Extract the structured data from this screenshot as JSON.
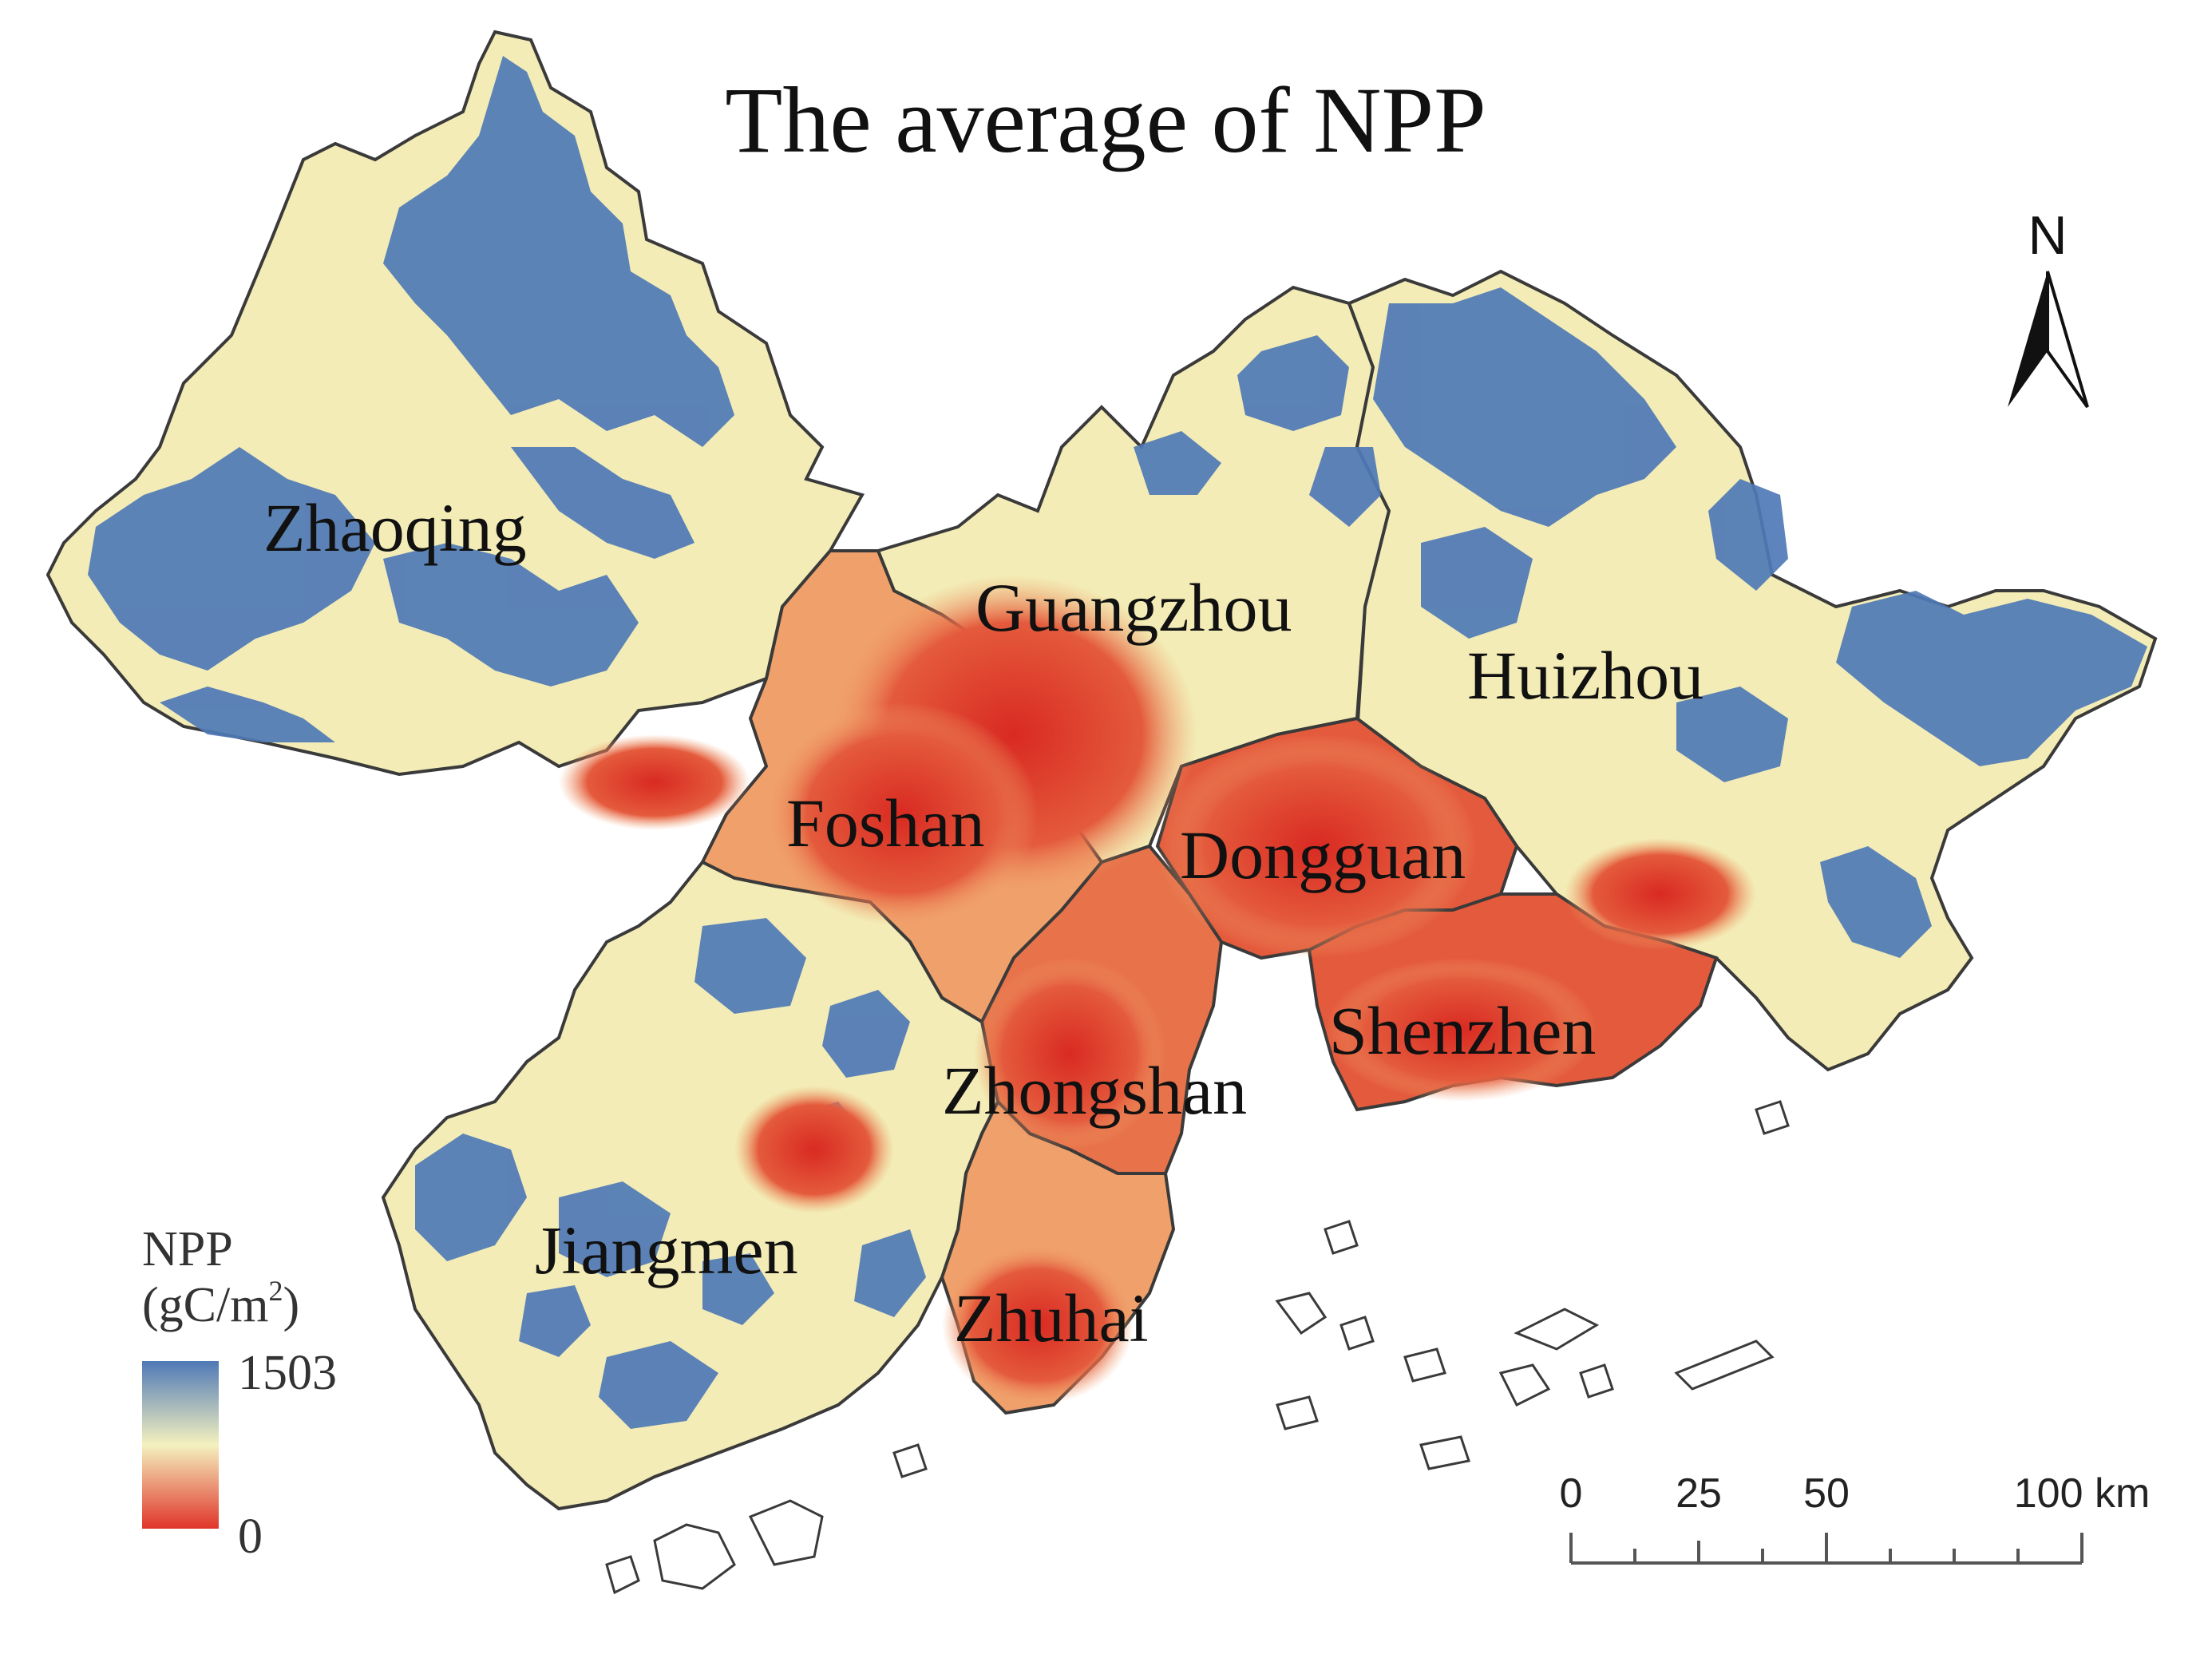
{
  "title": "The average of NPP",
  "north_arrow": {
    "label": "N"
  },
  "cities": [
    {
      "name": "Zhaoqing"
    },
    {
      "name": "Guangzhou"
    },
    {
      "name": "Huizhou"
    },
    {
      "name": "Foshan"
    },
    {
      "name": "Dongguan"
    },
    {
      "name": "Shenzhen"
    },
    {
      "name": "Zhongshan"
    },
    {
      "name": "Jiangmen"
    },
    {
      "name": "Zhuhai"
    }
  ],
  "legend": {
    "title_line1": "NPP",
    "unit_prefix": "(gC/m",
    "unit_sup": "2",
    "unit_suffix": ")",
    "max_label": "1503",
    "min_label": "0",
    "colors": {
      "high": "#4f79b6",
      "mid": "#f4f1bf",
      "low": "#e0352a"
    }
  },
  "scale_bar": {
    "labels": [
      "0",
      "25",
      "50",
      "100 km"
    ]
  },
  "colors": {
    "blue": "#4f79b6",
    "cream": "#f3ecb6",
    "orange": "#f0a06a",
    "red": "#e0352a",
    "boundary": "#3a3a3a"
  }
}
